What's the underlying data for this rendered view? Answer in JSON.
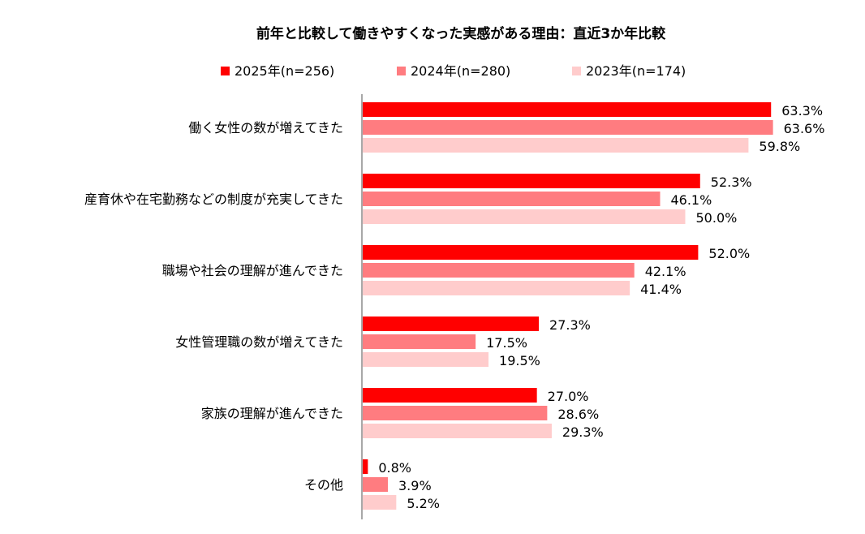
{
  "chart_data": {
    "type": "bar",
    "orientation": "horizontal",
    "title": "前年と比較して働きやすくなった実感がある理由：直近3か年比較",
    "categories": [
      "働く女性の数が増えてきた",
      "産育休や在宅勤務などの制度が充実してきた",
      "職場や社会の理解が進んできた",
      "女性管理職の数が増えてきた",
      "家族の理解が進んできた",
      "その他"
    ],
    "series": [
      {
        "name": "2025年(n=256)",
        "color": "#ff0000",
        "values": [
          63.3,
          52.3,
          52.0,
          27.3,
          27.0,
          0.8
        ]
      },
      {
        "name": "2024年(n=280)",
        "color": "#ff7c80",
        "values": [
          63.6,
          46.1,
          42.1,
          17.5,
          28.6,
          3.9
        ]
      },
      {
        "name": "2023年(n=174)",
        "color": "#ffcccc",
        "values": [
          59.8,
          50.0,
          41.4,
          19.5,
          29.3,
          5.2
        ]
      }
    ],
    "value_suffix": "%",
    "xlim": [
      0,
      100
    ],
    "grid": false,
    "legend_position": "top"
  }
}
